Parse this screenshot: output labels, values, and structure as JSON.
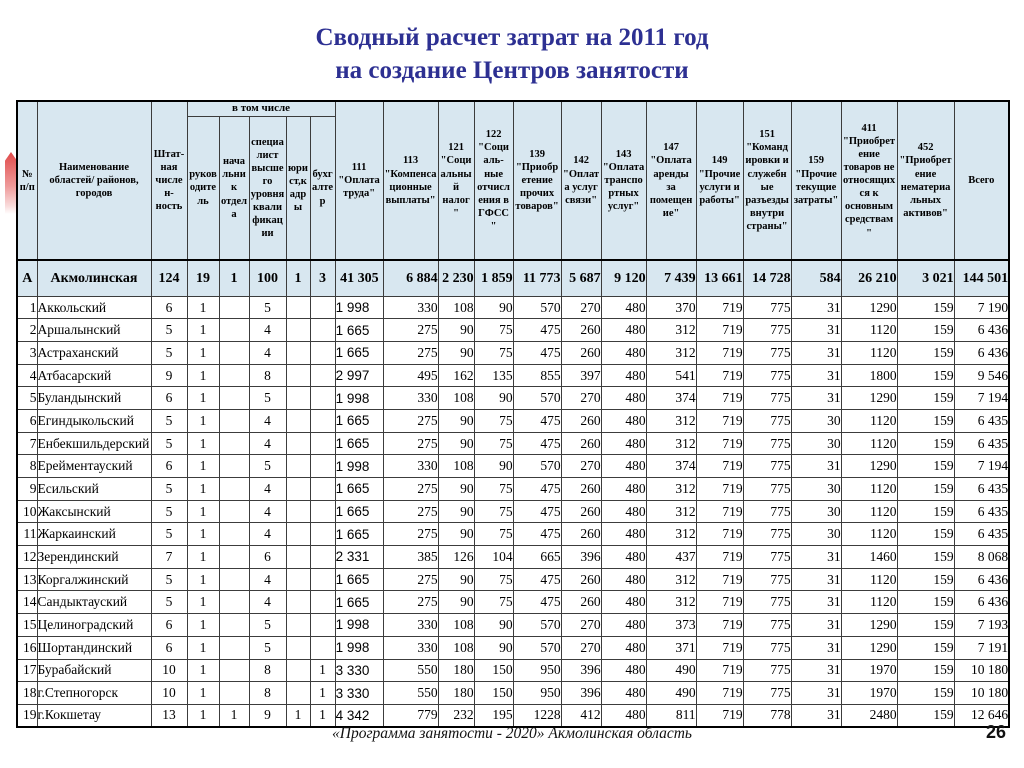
{
  "title": {
    "line1": "Сводный расчет затрат на 2011 год",
    "line2": "на создание Центров занятости"
  },
  "decor": {
    "ribbon_color": "#e04a4a"
  },
  "colors": {
    "title": "#2d3092",
    "header_bg": "#d8e7f0",
    "border": "#3c3c3c"
  },
  "table": {
    "group_header": "в том числе",
    "columns": [
      "№ п/п",
      "Наименование областей/ районов, городов",
      "Штат-ная числен-ность",
      "руководитель",
      "начальник отдела",
      "специалист высшего уровня квалификации",
      "юрист,кадры",
      "бухгалтер",
      "111\n\"Оплата труда\"",
      "113\n\"Компенсационные выплаты\"",
      "121\n\"Социальный налог\"",
      "122\n\"Социаль-ные отчисления в ГФСС\"",
      "139\n\"Приобретение прочих товаров\"",
      "142\n\"Оплата услуг связи\"",
      "143\n\"Оплата транспортных услуг\"",
      "147\n\"Оплата аренды за помещение\"",
      "149\n\"Прочие услуги и работы\"",
      "151\n\"Командировки и служебные разъезды внутри страны\"",
      "159\n\"Прочие текущие затраты\"",
      "411\n\"Приобретение товаров не относящихся к основным средствам\"",
      "452\n\"Приобретение нематериальных активов\"",
      "Всего"
    ],
    "totals_row": {
      "num": "А",
      "name": "Акмолинская",
      "values": [
        "124",
        "19",
        "1",
        "100",
        "1",
        "3",
        "41 305",
        "6 884",
        "2 230",
        "1 859",
        "11 773",
        "5 687",
        "9 120",
        "7 439",
        "13 661",
        "14 728",
        "584",
        "26 210",
        "3 021",
        "144 501"
      ]
    },
    "rows": [
      {
        "num": "1",
        "name": "Аккольский",
        "values": [
          "6",
          "1",
          "",
          "5",
          "",
          "",
          "1 998",
          "330",
          "108",
          "90",
          "570",
          "270",
          "480",
          "370",
          "719",
          "775",
          "31",
          "1290",
          "159",
          "7 190"
        ]
      },
      {
        "num": "2",
        "name": "Аршалынский",
        "values": [
          "5",
          "1",
          "",
          "4",
          "",
          "",
          "1 665",
          "275",
          "90",
          "75",
          "475",
          "260",
          "480",
          "312",
          "719",
          "775",
          "31",
          "1120",
          "159",
          "6 436"
        ]
      },
      {
        "num": "3",
        "name": "Астраханский",
        "values": [
          "5",
          "1",
          "",
          "4",
          "",
          "",
          "1 665",
          "275",
          "90",
          "75",
          "475",
          "260",
          "480",
          "312",
          "719",
          "775",
          "31",
          "1120",
          "159",
          "6 436"
        ]
      },
      {
        "num": "4",
        "name": "Атбасарский",
        "values": [
          "9",
          "1",
          "",
          "8",
          "",
          "",
          "2 997",
          "495",
          "162",
          "135",
          "855",
          "397",
          "480",
          "541",
          "719",
          "775",
          "31",
          "1800",
          "159",
          "9 546"
        ]
      },
      {
        "num": "5",
        "name": "Буландынский",
        "values": [
          "6",
          "1",
          "",
          "5",
          "",
          "",
          "1 998",
          "330",
          "108",
          "90",
          "570",
          "270",
          "480",
          "374",
          "719",
          "775",
          "31",
          "1290",
          "159",
          "7 194"
        ]
      },
      {
        "num": "6",
        "name": "Егиндыкольский",
        "values": [
          "5",
          "1",
          "",
          "4",
          "",
          "",
          "1 665",
          "275",
          "90",
          "75",
          "475",
          "260",
          "480",
          "312",
          "719",
          "775",
          "30",
          "1120",
          "159",
          "6 435"
        ]
      },
      {
        "num": "7",
        "name": "Енбекшильдерский",
        "values": [
          "5",
          "1",
          "",
          "4",
          "",
          "",
          "1 665",
          "275",
          "90",
          "75",
          "475",
          "260",
          "480",
          "312",
          "719",
          "775",
          "30",
          "1120",
          "159",
          "6 435"
        ]
      },
      {
        "num": "8",
        "name": "Ерейментауский",
        "values": [
          "6",
          "1",
          "",
          "5",
          "",
          "",
          "1 998",
          "330",
          "108",
          "90",
          "570",
          "270",
          "480",
          "374",
          "719",
          "775",
          "31",
          "1290",
          "159",
          "7 194"
        ]
      },
      {
        "num": "9",
        "name": "Есильский",
        "values": [
          "5",
          "1",
          "",
          "4",
          "",
          "",
          "1 665",
          "275",
          "90",
          "75",
          "475",
          "260",
          "480",
          "312",
          "719",
          "775",
          "30",
          "1120",
          "159",
          "6 435"
        ]
      },
      {
        "num": "10",
        "name": "Жаксынский",
        "values": [
          "5",
          "1",
          "",
          "4",
          "",
          "",
          "1 665",
          "275",
          "90",
          "75",
          "475",
          "260",
          "480",
          "312",
          "719",
          "775",
          "30",
          "1120",
          "159",
          "6 435"
        ]
      },
      {
        "num": "11",
        "name": "Жаркаинский",
        "values": [
          "5",
          "1",
          "",
          "4",
          "",
          "",
          "1 665",
          "275",
          "90",
          "75",
          "475",
          "260",
          "480",
          "312",
          "719",
          "775",
          "30",
          "1120",
          "159",
          "6 435"
        ]
      },
      {
        "num": "12",
        "name": "Зерендинский",
        "values": [
          "7",
          "1",
          "",
          "6",
          "",
          "",
          "2 331",
          "385",
          "126",
          "104",
          "665",
          "396",
          "480",
          "437",
          "719",
          "775",
          "31",
          "1460",
          "159",
          "8 068"
        ]
      },
      {
        "num": "13",
        "name": "Коргалжинский",
        "values": [
          "5",
          "1",
          "",
          "4",
          "",
          "",
          "1 665",
          "275",
          "90",
          "75",
          "475",
          "260",
          "480",
          "312",
          "719",
          "775",
          "31",
          "1120",
          "159",
          "6 436"
        ]
      },
      {
        "num": "14",
        "name": "Сандыктауский",
        "values": [
          "5",
          "1",
          "",
          "4",
          "",
          "",
          "1 665",
          "275",
          "90",
          "75",
          "475",
          "260",
          "480",
          "312",
          "719",
          "775",
          "31",
          "1120",
          "159",
          "6 436"
        ]
      },
      {
        "num": "15",
        "name": "Целиноградский",
        "values": [
          "6",
          "1",
          "",
          "5",
          "",
          "",
          "1 998",
          "330",
          "108",
          "90",
          "570",
          "270",
          "480",
          "373",
          "719",
          "775",
          "31",
          "1290",
          "159",
          "7 193"
        ]
      },
      {
        "num": "16",
        "name": "Шортандинский",
        "values": [
          "6",
          "1",
          "",
          "5",
          "",
          "",
          "1 998",
          "330",
          "108",
          "90",
          "570",
          "270",
          "480",
          "371",
          "719",
          "775",
          "31",
          "1290",
          "159",
          "7 191"
        ]
      },
      {
        "num": "17",
        "name": "Бурабайский",
        "values": [
          "10",
          "1",
          "",
          "8",
          "",
          "1",
          "3 330",
          "550",
          "180",
          "150",
          "950",
          "396",
          "480",
          "490",
          "719",
          "775",
          "31",
          "1970",
          "159",
          "10 180"
        ]
      },
      {
        "num": "18",
        "name": "г.Степногорск",
        "values": [
          "10",
          "1",
          "",
          "8",
          "",
          "1",
          "3 330",
          "550",
          "180",
          "150",
          "950",
          "396",
          "480",
          "490",
          "719",
          "775",
          "31",
          "1970",
          "159",
          "10 180"
        ]
      },
      {
        "num": "19",
        "name": "г.Кокшетау",
        "values": [
          "13",
          "1",
          "1",
          "9",
          "1",
          "1",
          "4 342",
          "779",
          "232",
          "195",
          "1228",
          "412",
          "480",
          "811",
          "719",
          "778",
          "31",
          "2480",
          "159",
          "12 646"
        ]
      }
    ]
  },
  "footer": {
    "caption": "«Программа занятости - 2020»  Акмолинская область",
    "page_number": "26"
  }
}
